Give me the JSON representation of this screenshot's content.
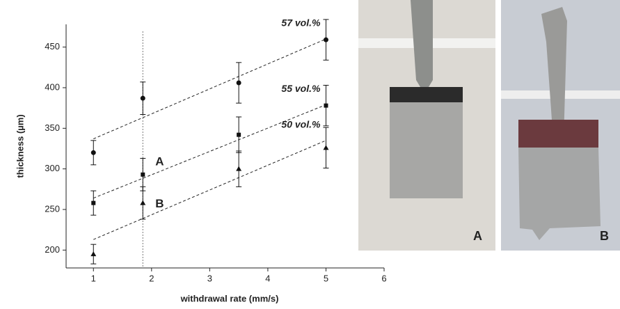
{
  "chart_data": {
    "type": "scatter",
    "xlabel": "withdrawal rate (mm/s)",
    "ylabel": "thickness (µm)",
    "xlim": [
      0.53,
      6.0
    ],
    "ylim": [
      178,
      478
    ],
    "xticks": [
      1,
      2,
      3,
      4,
      5,
      6
    ],
    "yticks": [
      200,
      250,
      300,
      350,
      400,
      450
    ],
    "x": [
      1,
      1.85,
      3.5,
      5
    ],
    "fit_x": [
      1,
      5
    ],
    "marker_line_x": 1.85,
    "series": [
      {
        "name": "57 vol.%",
        "color": "#111111",
        "marker": "circle",
        "values": [
          320,
          387,
          406,
          459
        ],
        "errors": [
          15,
          20,
          25,
          25
        ],
        "fit": [
          337,
          460
        ]
      },
      {
        "name": "55 vol.%",
        "color": "#111111",
        "marker": "square",
        "values": [
          258,
          293,
          342,
          378
        ],
        "errors": [
          15,
          20,
          22,
          25
        ],
        "fit": [
          264,
          379
        ]
      },
      {
        "name": "50 vol.%",
        "color": "#111111",
        "marker": "triangle",
        "values": [
          195,
          258,
          300,
          326
        ],
        "errors": [
          12,
          20,
          22,
          25
        ],
        "fit": [
          213,
          335
        ]
      }
    ],
    "annotations": [
      "A",
      "B"
    ],
    "photo_labels": [
      "A",
      "B"
    ]
  }
}
